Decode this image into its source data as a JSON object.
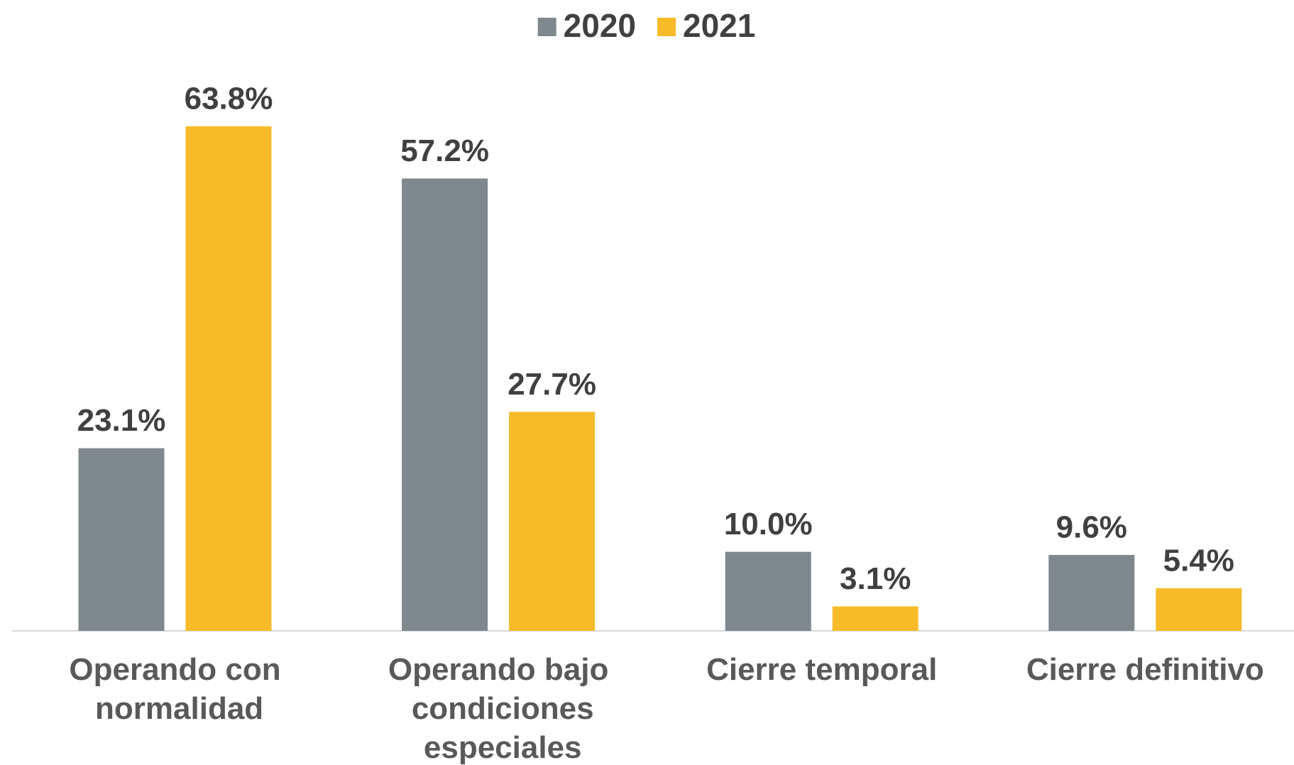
{
  "chart_data": {
    "type": "bar",
    "categories": [
      "Operando con normalidad",
      "Operando bajo condiciones especiales",
      "Cierre temporal",
      "Cierre definitivo"
    ],
    "series": [
      {
        "name": "2020",
        "color": "#7f888d",
        "values": [
          23.1,
          57.2,
          10.0,
          9.6
        ],
        "value_labels": [
          "23.1%",
          "57.2%",
          "10.0%",
          "9.6%"
        ]
      },
      {
        "name": "2021",
        "color": "#f7bb2a",
        "values": [
          63.8,
          27.7,
          3.1,
          5.4
        ],
        "value_labels": [
          "63.8%",
          "27.7%",
          "3.1%",
          "5.4%"
        ]
      }
    ],
    "legend": "top"
  }
}
